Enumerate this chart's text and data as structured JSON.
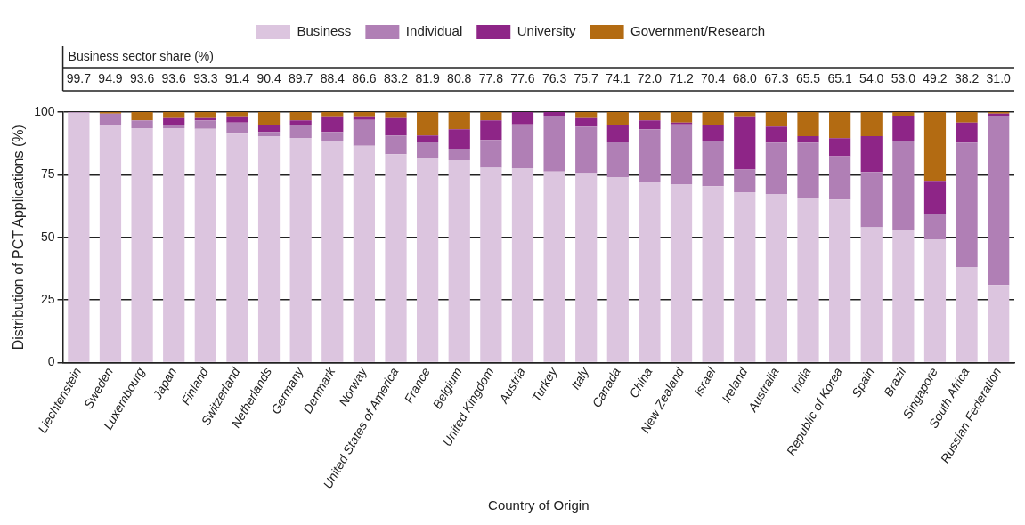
{
  "chart_data": {
    "type": "bar",
    "stacked": true,
    "xlabel": "Country of Origin",
    "ylabel": "Distribution of PCT Applications (%)",
    "annotations": [
      "Business sector share (%)"
    ],
    "categories": [
      "Liechtenstein",
      "Sweden",
      "Luxembourg",
      "Japan",
      "Finland",
      "Switzerland",
      "Netherlands",
      "Germany",
      "Denmark",
      "Norway",
      "United States of America",
      "France",
      "Belgium",
      "United Kingdom",
      "Austria",
      "Turkey",
      "Italy",
      "Canada",
      "China",
      "New Zealand",
      "Israel",
      "Ireland",
      "Australia",
      "India",
      "Republic of Korea",
      "Spain",
      "Brazil",
      "Singapore",
      "South Africa",
      "Russian Federation"
    ],
    "series": [
      {
        "name": "Business",
        "color": "#dcc5df",
        "values": [
          99.7,
          94.9,
          93.6,
          93.6,
          93.3,
          91.4,
          90.4,
          89.7,
          88.4,
          86.6,
          83.2,
          81.9,
          80.8,
          77.8,
          77.6,
          76.3,
          75.7,
          74.1,
          72.0,
          71.2,
          70.4,
          68.0,
          67.3,
          65.5,
          65.1,
          54.0,
          53.0,
          49.2,
          38.2,
          31.0
        ],
        "value_labels": [
          "99.7",
          "94.9",
          "93.6",
          "93.6",
          "93.3",
          "91.4",
          "90.4",
          "89.7",
          "88.4",
          "86.6",
          "83.2",
          "81.9",
          "80.8",
          "77.8",
          "77.6",
          "76.3",
          "75.7",
          "74.1",
          "72.0",
          "71.2",
          "70.4",
          "68.0",
          "67.3",
          "65.5",
          "65.1",
          "54.0",
          "53.0",
          "49.2",
          "38.2",
          "31.0"
        ]
      },
      {
        "name": "Individual",
        "color": "#b07fb5",
        "values": [
          0.3,
          4.5,
          3.1,
          1.3,
          3.4,
          4.4,
          1.7,
          5.2,
          3.7,
          10.3,
          7.5,
          6.0,
          4.3,
          11.1,
          17.5,
          22.3,
          18.5,
          13.8,
          21.2,
          23.9,
          18.2,
          9.1,
          20.5,
          22.3,
          17.3,
          22.1,
          35.6,
          10.2,
          49.6,
          67.6
        ]
      },
      {
        "name": "University",
        "color": "#8e2587",
        "values": [
          0,
          0,
          0,
          2.7,
          0.9,
          2.5,
          2.8,
          1.8,
          6.2,
          1.4,
          6.9,
          2.8,
          8.1,
          7.8,
          4.9,
          1.4,
          3.4,
          7.0,
          3.5,
          0.7,
          6.3,
          21.2,
          6.4,
          2.6,
          7.2,
          14.3,
          10.0,
          13.2,
          8.0,
          0.8
        ]
      },
      {
        "name": "Government/Research",
        "color": "#b36b12",
        "values": [
          0,
          0.6,
          3.3,
          2.4,
          2.4,
          1.7,
          5.1,
          3.3,
          1.7,
          1.7,
          2.4,
          9.3,
          6.8,
          3.3,
          0,
          0,
          2.4,
          5.1,
          3.3,
          4.2,
          5.1,
          1.7,
          5.8,
          9.6,
          10.4,
          9.6,
          1.4,
          27.4,
          4.2,
          0.6
        ]
      }
    ],
    "ylim": [
      0,
      100
    ],
    "yticks": [
      0,
      25,
      50,
      75,
      100
    ],
    "grid": "y",
    "legend": "top"
  }
}
